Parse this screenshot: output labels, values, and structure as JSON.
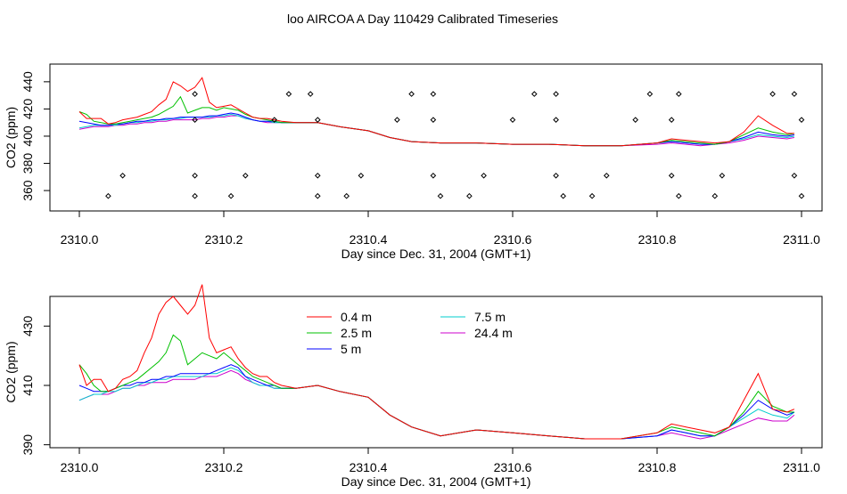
{
  "figure": {
    "title": "loo AIRCOA A  Day 110429  Calibrated Timeseries"
  },
  "colors": {
    "0.4 m": "#ff0000",
    "2.5 m": "#00c000",
    "5 m": "#0000ff",
    "7.5 m": "#00cccc",
    "24.4 m": "#cc00cc"
  },
  "chart_data": [
    {
      "type": "line",
      "title": "",
      "xlabel": "Day since Dec. 31, 2004 (GMT+1)",
      "ylabel": "CO2 (ppm)",
      "xlim": [
        2310.0,
        2311.0
      ],
      "ylim": [
        345,
        453
      ],
      "xticks": [
        "2310.0",
        "2310.2",
        "2310.4",
        "2310.6",
        "2310.8",
        "2311.0"
      ],
      "xtick_values": [
        2310.0,
        2310.2,
        2310.4,
        2310.6,
        2310.8,
        2311.0
      ],
      "yticks": [
        "360",
        "380",
        "400",
        "420",
        "440"
      ],
      "ytick_values": [
        360,
        380,
        400,
        420,
        440
      ],
      "legend": "none",
      "x": [
        2310.0,
        2310.01,
        2310.02,
        2310.03,
        2310.04,
        2310.05,
        2310.06,
        2310.07,
        2310.08,
        2310.09,
        2310.1,
        2310.11,
        2310.12,
        2310.13,
        2310.14,
        2310.15,
        2310.16,
        2310.17,
        2310.18,
        2310.19,
        2310.2,
        2310.21,
        2310.22,
        2310.23,
        2310.24,
        2310.25,
        2310.26,
        2310.27,
        2310.28,
        2310.3,
        2310.33,
        2310.36,
        2310.4,
        2310.43,
        2310.46,
        2310.5,
        2310.55,
        2310.6,
        2310.65,
        2310.7,
        2310.75,
        2310.8,
        2310.82,
        2310.84,
        2310.86,
        2310.88,
        2310.9,
        2310.92,
        2310.94,
        2310.96,
        2310.98,
        2310.99
      ],
      "series": [
        {
          "name": "0.4 m",
          "values": [
            418,
            413,
            413,
            413,
            409,
            410,
            412,
            413,
            414,
            416,
            418,
            423,
            427,
            440,
            437,
            433,
            436,
            443,
            425,
            421,
            422,
            423,
            420,
            417,
            414,
            413,
            413,
            412,
            411,
            410,
            410,
            407,
            404,
            399,
            396,
            395,
            395,
            394,
            394,
            393,
            393,
            395,
            398,
            397,
            396,
            395,
            396,
            403,
            415,
            408,
            402,
            402
          ]
        },
        {
          "name": "2.5 m",
          "values": [
            418,
            416,
            411,
            410,
            409,
            409,
            410,
            411,
            412,
            413,
            414,
            416,
            419,
            422,
            429,
            417,
            419,
            421,
            421,
            419,
            421,
            420,
            419,
            416,
            414,
            413,
            412,
            411,
            410,
            410,
            410,
            407,
            404,
            399,
            396,
            395,
            395,
            394,
            394,
            393,
            393,
            395,
            397,
            396,
            395,
            394,
            396,
            401,
            406,
            403,
            401,
            402
          ]
        },
        {
          "name": "5 m",
          "values": [
            411,
            410,
            409,
            408,
            408,
            409,
            409,
            410,
            411,
            411,
            412,
            412,
            413,
            413,
            414,
            414,
            414,
            414,
            415,
            415,
            416,
            417,
            416,
            414,
            412,
            411,
            411,
            411,
            410,
            410,
            410,
            407,
            404,
            399,
            396,
            395,
            395,
            394,
            394,
            393,
            393,
            395,
            396,
            395,
            394,
            394,
            396,
            399,
            403,
            401,
            400,
            401
          ]
        },
        {
          "name": "7.5 m",
          "values": [
            406,
            407,
            408,
            408,
            408,
            408,
            409,
            410,
            410,
            411,
            411,
            412,
            412,
            413,
            413,
            414,
            414,
            414,
            414,
            415,
            415,
            416,
            415,
            413,
            412,
            411,
            411,
            410,
            410,
            410,
            410,
            407,
            404,
            399,
            396,
            395,
            395,
            394,
            394,
            393,
            393,
            395,
            396,
            395,
            394,
            394,
            396,
            398,
            401,
            400,
            399,
            400
          ]
        },
        {
          "name": "24.4 m",
          "values": [
            405,
            406,
            407,
            407,
            407,
            408,
            408,
            409,
            409,
            410,
            410,
            411,
            411,
            412,
            412,
            412,
            412,
            413,
            413,
            414,
            414,
            415,
            415,
            413,
            412,
            411,
            410,
            410,
            410,
            410,
            410,
            407,
            404,
            399,
            396,
            395,
            395,
            394,
            394,
            393,
            393,
            394,
            395,
            394,
            393,
            394,
            395,
            397,
            400,
            399,
            398,
            399
          ]
        }
      ],
      "flag_points": {
        "x": [
          2310.04,
          2310.06,
          2310.16,
          2310.16,
          2310.16,
          2310.16,
          2310.21,
          2310.23,
          2310.27,
          2310.29,
          2310.32,
          2310.33,
          2310.33,
          2310.33,
          2310.37,
          2310.39,
          2310.44,
          2310.46,
          2310.49,
          2310.49,
          2310.49,
          2310.5,
          2310.54,
          2310.56,
          2310.6,
          2310.63,
          2310.66,
          2310.66,
          2310.66,
          2310.67,
          2310.71,
          2310.73,
          2310.77,
          2310.79,
          2310.82,
          2310.82,
          2310.83,
          2310.83,
          2310.88,
          2310.89,
          2310.96,
          2310.99,
          2311.0,
          2310.99,
          2311.0
        ],
        "y": [
          356,
          371,
          356,
          371,
          412,
          431,
          356,
          371,
          412,
          431,
          431,
          371,
          412,
          356,
          356,
          371,
          412,
          431,
          431,
          412,
          371,
          356,
          356,
          371,
          412,
          431,
          431,
          412,
          371,
          356,
          356,
          371,
          412,
          431,
          412,
          371,
          431,
          356,
          356,
          371,
          431,
          431,
          412,
          371,
          356
        ]
      }
    },
    {
      "type": "line",
      "title": "",
      "xlabel": "Day since Dec. 31, 2004 (GMT+1)",
      "ylabel": "CO2 (ppm)",
      "xlim": [
        2310.0,
        2311.0
      ],
      "ylim": [
        389,
        440
      ],
      "xticks": [
        "2310.0",
        "2310.2",
        "2310.4",
        "2310.6",
        "2310.8",
        "2311.0"
      ],
      "xtick_values": [
        2310.0,
        2310.2,
        2310.4,
        2310.6,
        2310.8,
        2311.0
      ],
      "yticks": [
        "390",
        "410",
        "430"
      ],
      "ytick_values": [
        390,
        410,
        430
      ],
      "legend": "top-center",
      "x": [
        2310.0,
        2310.01,
        2310.02,
        2310.03,
        2310.04,
        2310.05,
        2310.06,
        2310.07,
        2310.08,
        2310.09,
        2310.1,
        2310.11,
        2310.12,
        2310.13,
        2310.14,
        2310.15,
        2310.16,
        2310.17,
        2310.18,
        2310.19,
        2310.2,
        2310.21,
        2310.22,
        2310.23,
        2310.24,
        2310.25,
        2310.26,
        2310.27,
        2310.28,
        2310.3,
        2310.33,
        2310.36,
        2310.4,
        2310.43,
        2310.46,
        2310.5,
        2310.55,
        2310.6,
        2310.65,
        2310.7,
        2310.75,
        2310.8,
        2310.82,
        2310.84,
        2310.86,
        2310.88,
        2310.9,
        2310.92,
        2310.94,
        2310.96,
        2310.98,
        2310.99
      ],
      "series": [
        {
          "name": "0.4 m",
          "values": [
            417,
            410,
            412,
            412,
            408,
            409,
            412,
            413,
            415,
            421,
            426,
            434,
            438,
            440,
            437,
            434,
            437,
            444,
            426,
            421,
            422,
            423,
            419,
            416,
            414,
            413,
            413,
            411,
            410,
            409,
            410,
            408,
            406,
            400,
            396,
            393,
            395,
            394,
            393,
            392,
            392,
            394,
            397,
            396,
            395,
            394,
            396,
            405,
            414,
            402,
            401,
            402
          ]
        },
        {
          "name": "2.5 m",
          "values": [
            417,
            414,
            410,
            408,
            408,
            409,
            410,
            411,
            412,
            414,
            416,
            418,
            421,
            427,
            425,
            417,
            419,
            421,
            420,
            419,
            421,
            419,
            417,
            415,
            413,
            412,
            411,
            410,
            409,
            409,
            410,
            408,
            406,
            400,
            396,
            393,
            395,
            394,
            393,
            392,
            392,
            394,
            396,
            395,
            394,
            393,
            396,
            401,
            408,
            403,
            401,
            401
          ]
        },
        {
          "name": "5 m",
          "values": [
            410,
            409,
            408,
            408,
            408,
            409,
            410,
            410,
            411,
            411,
            412,
            412,
            413,
            413,
            414,
            414,
            414,
            414,
            414,
            415,
            416,
            417,
            416,
            413,
            412,
            411,
            410,
            410,
            409,
            409,
            410,
            408,
            406,
            400,
            396,
            393,
            395,
            394,
            393,
            392,
            392,
            393,
            395,
            394,
            393,
            393,
            396,
            400,
            405,
            402,
            400,
            401
          ]
        },
        {
          "name": "7.5 m",
          "values": [
            405,
            406,
            407,
            407,
            408,
            408,
            409,
            409,
            410,
            411,
            411,
            412,
            412,
            413,
            413,
            413,
            413,
            413,
            414,
            414,
            415,
            416,
            415,
            413,
            411,
            410,
            410,
            409,
            409,
            409,
            410,
            408,
            406,
            400,
            396,
            393,
            395,
            394,
            393,
            392,
            392,
            393,
            395,
            394,
            393,
            393,
            396,
            399,
            402,
            400,
            399,
            401
          ]
        },
        {
          "name": "24.4 m",
          "values": [
            405,
            406,
            407,
            407,
            407,
            408,
            409,
            409,
            410,
            410,
            411,
            411,
            411,
            412,
            412,
            412,
            412,
            413,
            413,
            413,
            414,
            415,
            414,
            412,
            411,
            410,
            410,
            409,
            409,
            409,
            410,
            408,
            406,
            400,
            396,
            393,
            395,
            394,
            393,
            392,
            392,
            393,
            394,
            393,
            392,
            393,
            395,
            397,
            399,
            398,
            398,
            400
          ]
        }
      ]
    }
  ]
}
